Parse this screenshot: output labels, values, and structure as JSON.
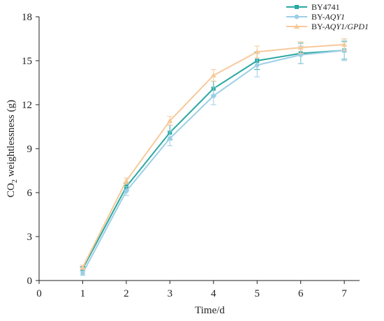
{
  "chart_data": {
    "type": "line",
    "xlabel": "Time/d",
    "ylabel_main": "CO",
    "ylabel_sub": "2",
    "ylabel_rest": " weightlessness (g)",
    "xlim": [
      0,
      7.35
    ],
    "ylim": [
      0,
      18
    ],
    "x_ticks": [
      0,
      1,
      2,
      3,
      4,
      5,
      6,
      7
    ],
    "y_ticks": [
      0,
      3,
      6,
      9,
      12,
      15,
      18
    ],
    "grid": false,
    "legend_position": "top-right",
    "x": [
      1,
      2,
      3,
      4,
      5,
      6,
      7
    ],
    "series": [
      {
        "name": "BY4741",
        "legend_prefix": "BY4741",
        "legend_italic": "",
        "color": "#2aa8a0",
        "marker": "square",
        "values": [
          0.8,
          6.4,
          10.1,
          13.1,
          15.0,
          15.5,
          15.7
        ],
        "errors": [
          0.15,
          0.25,
          0.5,
          0.5,
          0.6,
          0.7,
          0.6
        ]
      },
      {
        "name": "BY-AQY1",
        "legend_prefix": "BY-",
        "legend_italic": "AQY1",
        "color": "#9ccfe6",
        "marker": "circle",
        "values": [
          0.5,
          6.1,
          9.7,
          12.6,
          14.7,
          15.4,
          15.7
        ],
        "errors": [
          0.15,
          0.3,
          0.5,
          0.6,
          0.8,
          0.6,
          0.7
        ]
      },
      {
        "name": "BY-AQY1/GPD1",
        "legend_prefix": "BY-",
        "legend_italic": "AQY1/GPD1",
        "color": "#f7c99a",
        "marker": "triangle",
        "values": [
          0.9,
          6.8,
          10.9,
          14.0,
          15.6,
          15.9,
          16.1
        ],
        "errors": [
          0.15,
          0.2,
          0.3,
          0.4,
          0.4,
          0.4,
          0.4
        ]
      }
    ]
  }
}
